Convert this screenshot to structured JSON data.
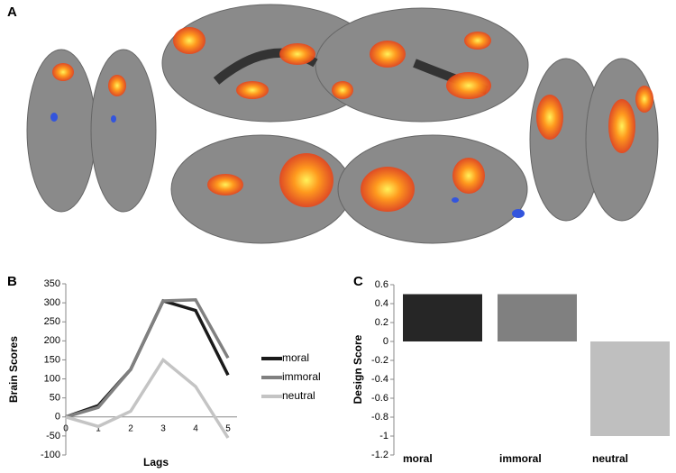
{
  "panel_a": {
    "label": "A"
  },
  "chart_data": [
    {
      "type": "line",
      "panel_label": "B",
      "xlabel": "Lags",
      "ylabel": "Brain Scores",
      "x": [
        0,
        1,
        2,
        3,
        4,
        5
      ],
      "series": [
        {
          "name": "moral",
          "color": "#1a1a1a",
          "values": [
            0,
            30,
            125,
            305,
            280,
            110
          ]
        },
        {
          "name": "immoral",
          "color": "#808080",
          "values": [
            0,
            25,
            125,
            305,
            308,
            155
          ]
        },
        {
          "name": "neutral",
          "color": "#c4c4c4",
          "values": [
            0,
            -25,
            15,
            150,
            80,
            -55
          ]
        }
      ],
      "ylim": [
        -100,
        350
      ],
      "yticks": [
        -100,
        -50,
        0,
        50,
        100,
        150,
        200,
        250,
        300,
        350
      ]
    },
    {
      "type": "bar",
      "panel_label": "C",
      "ylabel": "Design Score",
      "categories": [
        "moral",
        "immoral",
        "neutral"
      ],
      "values": [
        0.5,
        0.5,
        -1
      ],
      "colors": [
        "#262626",
        "#808080",
        "#bfbfbf"
      ],
      "ylim": [
        -1.2,
        0.6
      ],
      "yticks": [
        -1.2,
        -1,
        -0.8,
        -0.6,
        -0.4,
        -0.2,
        0,
        0.2,
        0.4,
        0.6
      ]
    }
  ]
}
